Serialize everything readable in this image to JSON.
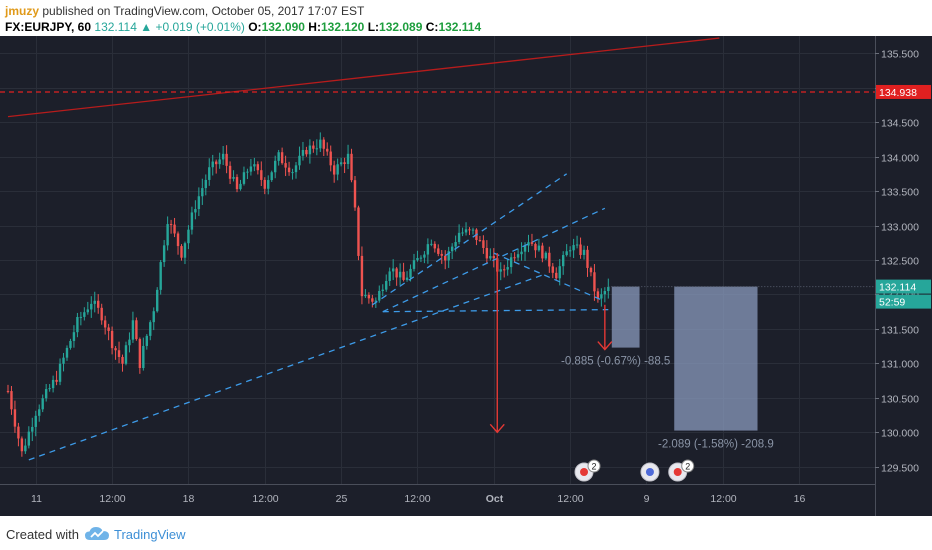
{
  "header": {
    "author": "jmuzy",
    "published_text": "published on TradingView.com, October 05, 2017 17:07 EST",
    "symbol": "FX:EURJPY, 60",
    "last": "132.114",
    "change": "+0.019 (+0.01%)",
    "open_label": "O:",
    "open": "132.090",
    "high_label": "H:",
    "high": "132.120",
    "low_label": "L:",
    "low": "132.089",
    "close_label": "C:",
    "close": "132.114"
  },
  "footer": {
    "created_with": "Created with",
    "brand": "TradingView"
  },
  "colors": {
    "background": "#1c1f2a",
    "grid": "#2a2e39",
    "bull": "#26a69a",
    "bear": "#ef5350",
    "trend_blue": "#3d9be9",
    "red_line": "#b71c1c",
    "axis_text": "#b2b5be"
  },
  "chart_data": {
    "type": "candlestick",
    "symbol": "FX:EURJPY",
    "interval": "60",
    "ylim": [
      129.25,
      135.75
    ],
    "y_ticks": [
      "129.500",
      "130.000",
      "130.500",
      "131.000",
      "131.500",
      "132.000",
      "132.500",
      "133.000",
      "133.500",
      "134.000",
      "134.500",
      "135.000",
      "135.500"
    ],
    "x_ticks": [
      {
        "label": "11",
        "bar": 8
      },
      {
        "label": "12:00",
        "bar": 30
      },
      {
        "label": "18",
        "bar": 52
      },
      {
        "label": "12:00",
        "bar": 74
      },
      {
        "label": "25",
        "bar": 96
      },
      {
        "label": "12:00",
        "bar": 118
      },
      {
        "label": "Oct",
        "bar": 140
      },
      {
        "label": "12:00",
        "bar": 162
      },
      {
        "label": "9",
        "bar": 184
      },
      {
        "label": "12:00",
        "bar": 206
      },
      {
        "label": "16",
        "bar": 228
      }
    ],
    "price_anchors": [
      [
        0,
        130.6
      ],
      [
        4,
        129.7
      ],
      [
        8,
        130.3
      ],
      [
        14,
        130.8
      ],
      [
        20,
        131.6
      ],
      [
        24,
        131.9
      ],
      [
        27,
        131.7
      ],
      [
        30,
        131.3
      ],
      [
        33,
        131.0
      ],
      [
        36,
        131.6
      ],
      [
        38,
        131.0
      ],
      [
        42,
        131.8
      ],
      [
        46,
        133.1
      ],
      [
        50,
        132.6
      ],
      [
        54,
        133.3
      ],
      [
        58,
        133.8
      ],
      [
        62,
        134.0
      ],
      [
        66,
        133.5
      ],
      [
        70,
        133.9
      ],
      [
        74,
        133.6
      ],
      [
        78,
        134.0
      ],
      [
        82,
        133.8
      ],
      [
        86,
        134.1
      ],
      [
        90,
        134.2
      ],
      [
        94,
        133.8
      ],
      [
        98,
        134.0
      ],
      [
        100,
        133.2
      ],
      [
        102,
        132.0
      ],
      [
        106,
        131.9
      ],
      [
        110,
        132.4
      ],
      [
        114,
        132.2
      ],
      [
        118,
        132.5
      ],
      [
        122,
        132.8
      ],
      [
        126,
        132.5
      ],
      [
        130,
        132.9
      ],
      [
        134,
        132.9
      ],
      [
        138,
        132.6
      ],
      [
        142,
        132.3
      ],
      [
        146,
        132.6
      ],
      [
        150,
        132.8
      ],
      [
        154,
        132.6
      ],
      [
        158,
        132.3
      ],
      [
        162,
        132.7
      ],
      [
        166,
        132.6
      ],
      [
        170,
        131.9
      ],
      [
        173,
        132.11
      ]
    ],
    "lines": [
      {
        "name": "red-trendline",
        "from": [
          0,
          134.58
        ],
        "to": [
          205,
          135.72
        ],
        "style": "solid",
        "color": "#b71c1c"
      },
      {
        "name": "resistance-level",
        "y": 134.938,
        "style": "dashed",
        "color": "#e02020"
      },
      {
        "name": "lower-trendline",
        "from": [
          6,
          129.6
        ],
        "to": [
          155,
          132.3
        ],
        "style": "dashed",
        "color": "#3d9be9"
      },
      {
        "name": "channel-upper",
        "from": [
          105,
          131.85
        ],
        "to": [
          161,
          133.75
        ],
        "style": "dashed",
        "color": "#3d9be9"
      },
      {
        "name": "channel-lower",
        "from": [
          108,
          131.75
        ],
        "to": [
          172,
          133.25
        ],
        "style": "dashed",
        "color": "#3d9be9"
      },
      {
        "name": "neckline",
        "from": [
          108,
          131.75
        ],
        "to": [
          173,
          131.78
        ],
        "style": "dashed",
        "color": "#3d9be9"
      },
      {
        "name": "wedge-top",
        "from": [
          140,
          132.6
        ],
        "to": [
          172,
          131.9
        ],
        "style": "dashed",
        "color": "#3d9be9"
      }
    ],
    "arrows": [
      {
        "name": "target-arrow-1",
        "x": 141,
        "from": 132.6,
        "to": 130.0
      },
      {
        "name": "target-arrow-2",
        "x": 172,
        "from": 131.85,
        "to": 131.2
      }
    ],
    "boxes": [
      {
        "name": "short-zone-1",
        "from_bar": 174,
        "to_bar": 182,
        "top": 132.114,
        "bottom": 131.229,
        "label": "-0.885 (-0.67%) -88.5"
      },
      {
        "name": "short-zone-2",
        "from_bar": 192,
        "to_bar": 216,
        "top": 132.114,
        "bottom": 130.025,
        "label": "-2.089 (-1.58%) -208.9"
      }
    ],
    "price_labels": [
      {
        "name": "resistance-label",
        "value": "134.938",
        "color": "#e02020"
      },
      {
        "name": "last-price-label",
        "value": "132.114",
        "color": "#26a69a"
      },
      {
        "name": "countdown-label",
        "value": "52:59",
        "color": "#26a69a"
      }
    ],
    "event_badges": [
      {
        "name": "event-badge-1",
        "bar": 166,
        "count": "2"
      },
      {
        "name": "event-badge-2",
        "bar": 185,
        "count": ""
      },
      {
        "name": "event-badge-3",
        "bar": 193,
        "count": "2"
      }
    ]
  }
}
